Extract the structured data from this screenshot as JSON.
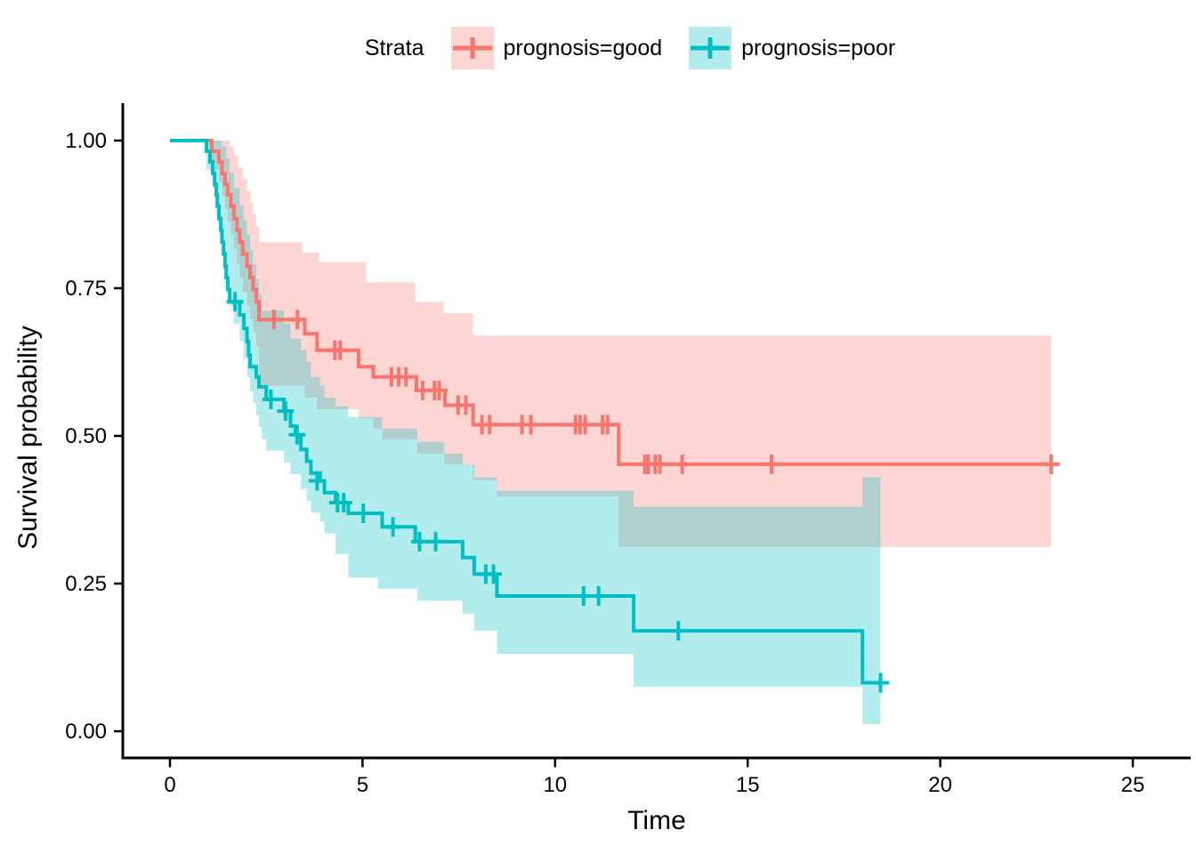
{
  "legend": {
    "title": "Strata",
    "items": [
      {
        "label": "prognosis=good",
        "color": "#F8766D"
      },
      {
        "label": "prognosis=poor",
        "color": "#00BFC4"
      }
    ]
  },
  "axes": {
    "x": {
      "label": "Time",
      "ticks": [
        0,
        5,
        10,
        15,
        20,
        25
      ],
      "range": [
        0,
        25.5
      ]
    },
    "y": {
      "label": "Survival probability",
      "ticks": [
        0,
        0.25,
        0.5,
        0.75,
        1.0
      ],
      "tick_labels": [
        "0.00",
        "0.25",
        "0.50",
        "0.75",
        "1.00"
      ],
      "range": [
        0,
        1
      ]
    }
  },
  "chart_data": {
    "type": "line",
    "variant": "kaplan-meier-step",
    "title": "",
    "xlabel": "Time",
    "ylabel": "Survival probability",
    "xlim": [
      0,
      25.5
    ],
    "ylim": [
      0,
      1
    ],
    "grid": false,
    "legend_position": "top",
    "ci_fill_opacity": 0.3,
    "series": [
      {
        "name": "prognosis=good",
        "color": "#F8766D",
        "end_time": 22.88,
        "steps": [
          [
            0,
            1.0
          ],
          [
            1.08,
            0.982
          ],
          [
            1.27,
            0.964
          ],
          [
            1.35,
            0.944
          ],
          [
            1.43,
            0.926
          ],
          [
            1.5,
            0.908
          ],
          [
            1.58,
            0.889
          ],
          [
            1.66,
            0.868
          ],
          [
            1.74,
            0.848
          ],
          [
            1.81,
            0.828
          ],
          [
            1.89,
            0.808
          ],
          [
            2.0,
            0.787
          ],
          [
            2.08,
            0.768
          ],
          [
            2.16,
            0.748
          ],
          [
            2.24,
            0.727
          ],
          [
            2.31,
            0.697
          ],
          [
            3.5,
            0.673
          ],
          [
            3.82,
            0.645
          ],
          [
            4.9,
            0.617
          ],
          [
            5.28,
            0.6
          ],
          [
            6.4,
            0.577
          ],
          [
            7.14,
            0.552
          ],
          [
            7.87,
            0.519
          ],
          [
            11.65,
            0.452
          ]
        ],
        "censors": [
          [
            2.7,
            0.697
          ],
          [
            3.31,
            0.697
          ],
          [
            4.28,
            0.645
          ],
          [
            4.42,
            0.645
          ],
          [
            5.75,
            0.6
          ],
          [
            5.94,
            0.6
          ],
          [
            6.13,
            0.6
          ],
          [
            6.56,
            0.577
          ],
          [
            6.87,
            0.577
          ],
          [
            6.99,
            0.577
          ],
          [
            7.48,
            0.552
          ],
          [
            7.68,
            0.552
          ],
          [
            8.1,
            0.519
          ],
          [
            8.3,
            0.519
          ],
          [
            9.14,
            0.519
          ],
          [
            9.37,
            0.519
          ],
          [
            10.53,
            0.519
          ],
          [
            10.65,
            0.519
          ],
          [
            10.78,
            0.519
          ],
          [
            11.23,
            0.519
          ],
          [
            11.36,
            0.519
          ],
          [
            12.33,
            0.452
          ],
          [
            12.42,
            0.452
          ],
          [
            12.6,
            0.452
          ],
          [
            12.72,
            0.452
          ],
          [
            13.3,
            0.452
          ],
          [
            15.62,
            0.452
          ],
          [
            22.88,
            0.452
          ]
        ],
        "ci_upper": [
          [
            1.08,
            1.0
          ],
          [
            1.55,
            0.99
          ],
          [
            1.66,
            0.975
          ],
          [
            1.77,
            0.955
          ],
          [
            1.89,
            0.935
          ],
          [
            2.0,
            0.915
          ],
          [
            2.08,
            0.895
          ],
          [
            2.16,
            0.875
          ],
          [
            2.24,
            0.855
          ],
          [
            2.31,
            0.828
          ],
          [
            3.43,
            0.81
          ],
          [
            3.87,
            0.794
          ],
          [
            5.09,
            0.76
          ],
          [
            6.37,
            0.727
          ],
          [
            7.11,
            0.708
          ],
          [
            7.87,
            0.67
          ]
        ],
        "ci_lower": [
          [
            1.08,
            0.95
          ],
          [
            1.27,
            0.928
          ],
          [
            1.35,
            0.906
          ],
          [
            1.43,
            0.884
          ],
          [
            1.5,
            0.862
          ],
          [
            1.58,
            0.84
          ],
          [
            1.66,
            0.816
          ],
          [
            1.74,
            0.792
          ],
          [
            1.81,
            0.768
          ],
          [
            1.89,
            0.744
          ],
          [
            2.0,
            0.72
          ],
          [
            2.08,
            0.698
          ],
          [
            2.16,
            0.676
          ],
          [
            2.24,
            0.652
          ],
          [
            2.31,
            0.585
          ],
          [
            3.5,
            0.565
          ],
          [
            3.82,
            0.545
          ],
          [
            4.9,
            0.53
          ],
          [
            5.28,
            0.512
          ],
          [
            5.51,
            0.494
          ],
          [
            6.42,
            0.47
          ],
          [
            7.12,
            0.452
          ],
          [
            7.87,
            0.425
          ],
          [
            8.49,
            0.398
          ],
          [
            11.65,
            0.312
          ]
        ]
      },
      {
        "name": "prognosis=poor",
        "color": "#00BFC4",
        "end_time": 18.45,
        "steps": [
          [
            0,
            1.0
          ],
          [
            0.95,
            0.982
          ],
          [
            1.04,
            0.964
          ],
          [
            1.11,
            0.944
          ],
          [
            1.16,
            0.926
          ],
          [
            1.2,
            0.908
          ],
          [
            1.23,
            0.889
          ],
          [
            1.27,
            0.868
          ],
          [
            1.32,
            0.848
          ],
          [
            1.35,
            0.828
          ],
          [
            1.39,
            0.808
          ],
          [
            1.43,
            0.787
          ],
          [
            1.46,
            0.768
          ],
          [
            1.5,
            0.748
          ],
          [
            1.55,
            0.727
          ],
          [
            1.81,
            0.705
          ],
          [
            1.92,
            0.682
          ],
          [
            2.0,
            0.66
          ],
          [
            2.04,
            0.637
          ],
          [
            2.08,
            0.617
          ],
          [
            2.24,
            0.6
          ],
          [
            2.31,
            0.583
          ],
          [
            2.5,
            0.562
          ],
          [
            2.96,
            0.542
          ],
          [
            3.13,
            0.517
          ],
          [
            3.26,
            0.502
          ],
          [
            3.4,
            0.477
          ],
          [
            3.55,
            0.457
          ],
          [
            3.66,
            0.437
          ],
          [
            3.9,
            0.424
          ],
          [
            4.01,
            0.404
          ],
          [
            4.3,
            0.387
          ],
          [
            4.63,
            0.369
          ],
          [
            5.51,
            0.346
          ],
          [
            6.37,
            0.321
          ],
          [
            7.6,
            0.294
          ],
          [
            7.9,
            0.266
          ],
          [
            8.49,
            0.229
          ],
          [
            12.04,
            0.17
          ],
          [
            17.98,
            0.082
          ]
        ],
        "censors": [
          [
            1.69,
            0.727
          ],
          [
            2.62,
            0.562
          ],
          [
            3.0,
            0.542
          ],
          [
            3.3,
            0.502
          ],
          [
            3.82,
            0.424
          ],
          [
            4.35,
            0.387
          ],
          [
            4.51,
            0.387
          ],
          [
            5.02,
            0.369
          ],
          [
            5.79,
            0.346
          ],
          [
            6.48,
            0.321
          ],
          [
            6.9,
            0.321
          ],
          [
            8.2,
            0.266
          ],
          [
            8.4,
            0.266
          ],
          [
            10.74,
            0.229
          ],
          [
            11.13,
            0.229
          ],
          [
            13.2,
            0.17
          ],
          [
            18.45,
            0.082
          ]
        ],
        "ci_upper": [
          [
            0.95,
            1.0
          ],
          [
            1.35,
            0.99
          ],
          [
            1.46,
            0.97
          ],
          [
            1.55,
            0.945
          ],
          [
            1.66,
            0.92
          ],
          [
            1.81,
            0.89
          ],
          [
            1.92,
            0.865
          ],
          [
            2.0,
            0.84
          ],
          [
            2.08,
            0.815
          ],
          [
            2.16,
            0.79
          ],
          [
            2.24,
            0.765
          ],
          [
            2.31,
            0.74
          ],
          [
            2.38,
            0.712
          ],
          [
            2.96,
            0.69
          ],
          [
            3.13,
            0.665
          ],
          [
            3.4,
            0.645
          ],
          [
            3.55,
            0.625
          ],
          [
            3.66,
            0.6
          ],
          [
            3.9,
            0.585
          ],
          [
            4.01,
            0.565
          ],
          [
            4.3,
            0.55
          ],
          [
            4.63,
            0.532
          ],
          [
            5.51,
            0.512
          ],
          [
            6.42,
            0.49
          ],
          [
            7.12,
            0.47
          ],
          [
            7.6,
            0.452
          ],
          [
            7.9,
            0.43
          ],
          [
            8.49,
            0.407
          ],
          [
            12.04,
            0.38
          ],
          [
            17.98,
            0.43
          ]
        ],
        "ci_lower": [
          [
            0.95,
            0.95
          ],
          [
            1.11,
            0.92
          ],
          [
            1.2,
            0.89
          ],
          [
            1.27,
            0.855
          ],
          [
            1.35,
            0.82
          ],
          [
            1.43,
            0.785
          ],
          [
            1.5,
            0.75
          ],
          [
            1.55,
            0.72
          ],
          [
            1.66,
            0.69
          ],
          [
            1.81,
            0.66
          ],
          [
            1.92,
            0.63
          ],
          [
            2.0,
            0.6
          ],
          [
            2.08,
            0.575
          ],
          [
            2.16,
            0.555
          ],
          [
            2.24,
            0.535
          ],
          [
            2.31,
            0.515
          ],
          [
            2.38,
            0.495
          ],
          [
            2.5,
            0.475
          ],
          [
            2.96,
            0.455
          ],
          [
            3.13,
            0.435
          ],
          [
            3.4,
            0.41
          ],
          [
            3.55,
            0.39
          ],
          [
            3.66,
            0.37
          ],
          [
            3.9,
            0.355
          ],
          [
            4.01,
            0.335
          ],
          [
            4.3,
            0.3
          ],
          [
            4.63,
            0.26
          ],
          [
            5.4,
            0.241
          ],
          [
            6.42,
            0.221
          ],
          [
            7.6,
            0.199
          ],
          [
            7.9,
            0.17
          ],
          [
            8.49,
            0.131
          ],
          [
            12.04,
            0.075
          ],
          [
            17.98,
            0.012
          ]
        ]
      }
    ]
  }
}
